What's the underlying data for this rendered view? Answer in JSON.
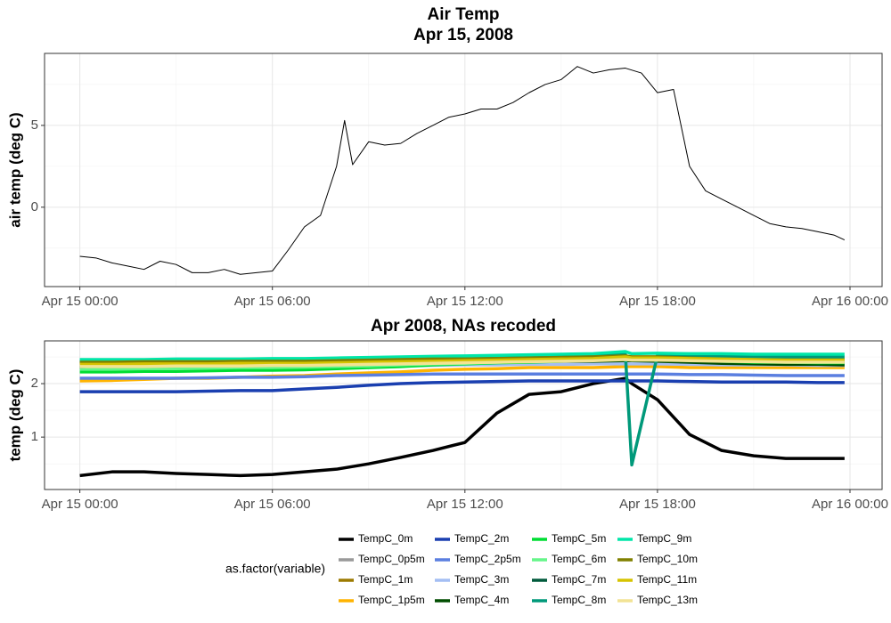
{
  "chart_data": [
    {
      "type": "line",
      "title": "Air Temp",
      "subtitle": "Apr 15, 2008",
      "ylabel": "air temp (deg C)",
      "x": [
        0,
        0.5,
        1,
        1.5,
        2,
        2.5,
        3,
        3.5,
        4,
        4.5,
        5,
        5.5,
        6,
        6.5,
        7,
        7.5,
        8,
        8.25,
        8.5,
        9,
        9.5,
        10,
        10.5,
        11,
        11.5,
        12,
        12.5,
        13,
        13.5,
        14,
        14.5,
        15,
        15.5,
        16,
        16.5,
        17,
        17.5,
        18,
        18.5,
        19,
        19.5,
        20,
        20.5,
        21,
        21.5,
        22,
        22.5,
        23,
        23.5,
        23.83
      ],
      "series": [
        {
          "color": "#000000",
          "values": [
            -3.0,
            -3.1,
            -3.4,
            -3.6,
            -3.8,
            -3.3,
            -3.5,
            -4.0,
            -4.0,
            -3.8,
            -4.1,
            -4.0,
            -3.9,
            -2.6,
            -1.2,
            -0.5,
            2.5,
            5.3,
            2.6,
            4.0,
            3.8,
            3.9,
            4.5,
            5.0,
            5.5,
            5.7,
            6.0,
            6.0,
            6.4,
            7.0,
            7.5,
            7.8,
            8.6,
            8.2,
            8.4,
            8.5,
            8.2,
            7.0,
            7.2,
            2.5,
            1.0,
            0.5,
            0.0,
            -0.5,
            -1.0,
            -1.2,
            -1.3,
            -1.5,
            -1.7,
            -2.0
          ]
        }
      ],
      "xlim": [
        -1.1,
        25
      ],
      "xticks": [
        {
          "value": 0,
          "label": "Apr 15 00:00"
        },
        {
          "value": 6,
          "label": "Apr 15 06:00"
        },
        {
          "value": 12,
          "label": "Apr 15 12:00"
        },
        {
          "value": 18,
          "label": "Apr 15 18:00"
        },
        {
          "value": 24,
          "label": "Apr 16 00:00"
        }
      ],
      "xminor": [
        3,
        9,
        15,
        21
      ],
      "ylim": [
        -4.85,
        9.4
      ],
      "yticks": [
        0,
        5
      ],
      "yminor": [
        -2.5,
        2.5,
        7.5
      ],
      "grid": true,
      "line_width": 1
    },
    {
      "type": "line",
      "title": "Apr 2008, NAs recoded",
      "ylabel": "temp (deg C)",
      "x": [
        0,
        1,
        2,
        3,
        4,
        5,
        6,
        7,
        8,
        9,
        10,
        11,
        12,
        13,
        14,
        15,
        16,
        17,
        17.2,
        18,
        19,
        20,
        21,
        22,
        23,
        23.83
      ],
      "series": [
        {
          "name": "TempC_0m",
          "color": "#000000",
          "values": [
            0.28,
            0.35,
            0.35,
            0.32,
            0.3,
            0.28,
            0.3,
            0.35,
            0.4,
            0.5,
            0.62,
            0.75,
            0.9,
            1.45,
            1.8,
            1.85,
            2.0,
            2.1,
            2.0,
            1.7,
            1.05,
            0.75,
            0.65,
            0.6,
            0.6,
            0.6
          ]
        },
        {
          "name": "TempC_0p5m",
          "color": "#999999",
          "values": [
            2.33,
            2.33,
            2.34,
            2.34,
            2.35,
            2.35,
            2.35,
            2.36,
            2.37,
            2.38,
            2.39,
            2.4,
            2.4,
            2.41,
            2.42,
            2.42,
            2.43,
            2.44,
            2.44,
            2.44,
            2.43,
            2.42,
            2.42,
            2.41,
            2.41,
            2.41
          ]
        },
        {
          "name": "TempC_1m",
          "color": "#9C7A00",
          "values": [
            2.4,
            2.4,
            2.4,
            2.41,
            2.41,
            2.42,
            2.42,
            2.42,
            2.43,
            2.44,
            2.45,
            2.46,
            2.47,
            2.48,
            2.48,
            2.49,
            2.5,
            2.5,
            2.5,
            2.5,
            2.48,
            2.47,
            2.46,
            2.45,
            2.45,
            2.45
          ]
        },
        {
          "name": "TempC_1p5m",
          "color": "#FFB300",
          "values": [
            2.05,
            2.06,
            2.08,
            2.1,
            2.1,
            2.12,
            2.14,
            2.15,
            2.18,
            2.2,
            2.22,
            2.25,
            2.27,
            2.28,
            2.3,
            2.3,
            2.3,
            2.32,
            2.32,
            2.32,
            2.3,
            2.3,
            2.3,
            2.3,
            2.3,
            2.3
          ]
        },
        {
          "name": "TempC_2m",
          "color": "#1A3FB0",
          "values": [
            1.85,
            1.85,
            1.85,
            1.85,
            1.86,
            1.87,
            1.87,
            1.9,
            1.93,
            1.97,
            2.0,
            2.02,
            2.03,
            2.04,
            2.05,
            2.05,
            2.05,
            2.05,
            2.05,
            2.05,
            2.04,
            2.03,
            2.03,
            2.03,
            2.02,
            2.02
          ]
        },
        {
          "name": "TempC_2p5m",
          "color": "#5B7FE0",
          "values": [
            2.1,
            2.1,
            2.1,
            2.1,
            2.11,
            2.12,
            2.12,
            2.13,
            2.15,
            2.16,
            2.17,
            2.18,
            2.18,
            2.18,
            2.18,
            2.18,
            2.18,
            2.18,
            2.18,
            2.18,
            2.17,
            2.17,
            2.16,
            2.15,
            2.15,
            2.15
          ]
        },
        {
          "name": "TempC_3m",
          "color": "#A4BEF3",
          "values": [
            2.28,
            2.28,
            2.28,
            2.29,
            2.29,
            2.3,
            2.3,
            2.3,
            2.31,
            2.32,
            2.33,
            2.34,
            2.35,
            2.35,
            2.36,
            2.36,
            2.37,
            2.37,
            2.37,
            2.37,
            2.36,
            2.35,
            2.35,
            2.35,
            2.34,
            2.34
          ]
        },
        {
          "name": "TempC_4m",
          "color": "#004D00",
          "values": [
            2.3,
            2.32,
            2.28,
            2.31,
            2.3,
            2.29,
            2.31,
            2.3,
            2.33,
            2.35,
            2.36,
            2.38,
            2.4,
            2.4,
            2.41,
            2.42,
            2.42,
            2.43,
            2.43,
            2.42,
            2.4,
            2.38,
            2.37,
            2.36,
            2.36,
            2.35
          ]
        },
        {
          "name": "TempC_5m",
          "color": "#00DD33",
          "values": [
            2.22,
            2.22,
            2.23,
            2.23,
            2.24,
            2.25,
            2.25,
            2.26,
            2.28,
            2.3,
            2.32,
            2.35,
            2.37,
            2.39,
            2.4,
            2.42,
            2.44,
            2.48,
            2.45,
            2.46,
            2.44,
            2.42,
            2.4,
            2.4,
            2.39,
            2.39
          ]
        },
        {
          "name": "TempC_6m",
          "color": "#66F58A",
          "values": [
            2.27,
            2.27,
            2.28,
            2.28,
            2.29,
            2.3,
            2.3,
            2.31,
            2.32,
            2.33,
            2.35,
            2.37,
            2.38,
            2.4,
            2.42,
            2.44,
            2.46,
            2.5,
            2.48,
            2.48,
            2.46,
            2.45,
            2.44,
            2.43,
            2.43,
            2.42
          ]
        },
        {
          "name": "TempC_7m",
          "color": "#005A3C",
          "values": [
            2.32,
            2.33,
            2.33,
            2.34,
            2.34,
            2.35,
            2.35,
            2.36,
            2.37,
            2.38,
            2.39,
            2.4,
            2.41,
            2.42,
            2.43,
            2.44,
            2.45,
            2.47,
            2.46,
            2.46,
            2.45,
            2.44,
            2.43,
            2.42,
            2.42,
            2.41
          ]
        },
        {
          "name": "TempC_8m",
          "color": "#00997A",
          "values": [
            2.42,
            2.42,
            2.42,
            2.43,
            2.43,
            2.43,
            2.44,
            2.44,
            2.45,
            2.45,
            2.46,
            2.47,
            2.48,
            2.49,
            2.5,
            2.51,
            2.52,
            2.55,
            0.48,
            2.53,
            2.52,
            2.51,
            2.5,
            2.5,
            2.5,
            2.5
          ]
        },
        {
          "name": "TempC_9m",
          "color": "#00E6A8",
          "values": [
            2.45,
            2.45,
            2.45,
            2.46,
            2.46,
            2.46,
            2.47,
            2.47,
            2.48,
            2.49,
            2.5,
            2.51,
            2.52,
            2.53,
            2.54,
            2.55,
            2.56,
            2.6,
            2.56,
            2.57,
            2.56,
            2.56,
            2.55,
            2.55,
            2.55,
            2.55
          ]
        },
        {
          "name": "TempC_10m",
          "color": "#808000",
          "values": [
            2.4,
            2.4,
            2.41,
            2.41,
            2.41,
            2.42,
            2.42,
            2.42,
            2.43,
            2.44,
            2.45,
            2.46,
            2.46,
            2.47,
            2.48,
            2.49,
            2.5,
            2.52,
            2.5,
            2.5,
            2.48,
            2.46,
            2.45,
            2.44,
            2.43,
            2.43
          ]
        },
        {
          "name": "TempC_11m",
          "color": "#D6C300",
          "values": [
            2.36,
            2.36,
            2.37,
            2.37,
            2.37,
            2.38,
            2.38,
            2.38,
            2.39,
            2.4,
            2.41,
            2.42,
            2.43,
            2.44,
            2.45,
            2.46,
            2.47,
            2.5,
            2.48,
            2.48,
            2.47,
            2.46,
            2.45,
            2.44,
            2.44,
            2.44
          ]
        },
        {
          "name": "TempC_13m",
          "color": "#F2E394",
          "values": [
            2.32,
            2.32,
            2.32,
            2.33,
            2.33,
            2.33,
            2.34,
            2.34,
            2.35,
            2.36,
            2.37,
            2.38,
            2.39,
            2.4,
            2.41,
            2.42,
            2.43,
            2.45,
            2.44,
            2.44,
            2.43,
            2.42,
            2.41,
            2.4,
            2.4,
            2.4
          ]
        }
      ],
      "xlim": [
        -1.1,
        25
      ],
      "xticks": [
        {
          "value": 0,
          "label": "Apr 15 00:00"
        },
        {
          "value": 6,
          "label": "Apr 15 06:00"
        },
        {
          "value": 12,
          "label": "Apr 15 12:00"
        },
        {
          "value": 18,
          "label": "Apr 15 18:00"
        },
        {
          "value": 24,
          "label": "Apr 16 00:00"
        }
      ],
      "xminor": [
        3,
        9,
        15,
        21
      ],
      "ylim": [
        0.02,
        2.8
      ],
      "yticks": [
        1,
        2
      ],
      "yminor": [
        0.5,
        1.5,
        2.5
      ],
      "grid": true,
      "line_width": 3.5,
      "legend_title": "as.factor(variable)",
      "legend_position": "bottom"
    }
  ]
}
